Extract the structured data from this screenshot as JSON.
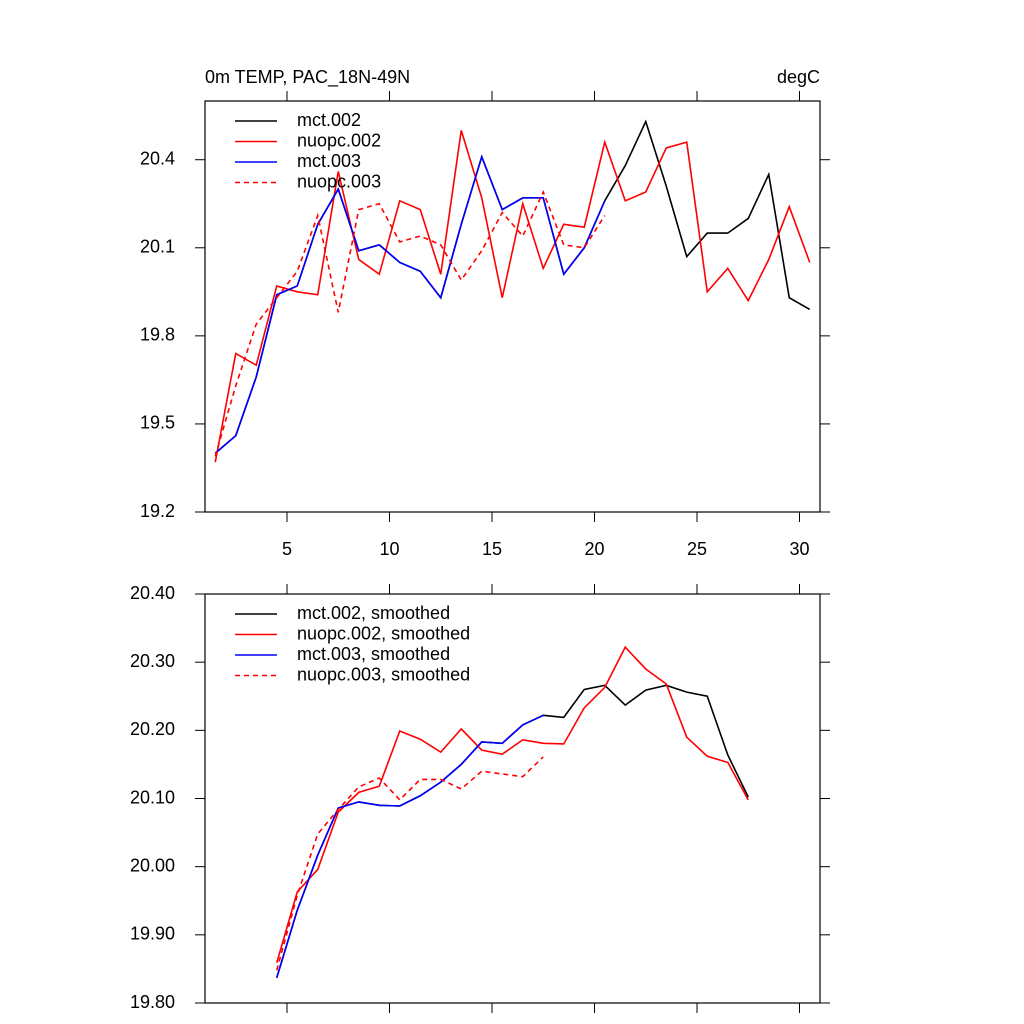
{
  "chart_data": [
    {
      "type": "line",
      "title": "0m TEMP, PAC_18N-49N",
      "subtitle": "degC",
      "x": [
        1.5,
        2.5,
        3.5,
        4.5,
        5.5,
        6.5,
        7.5,
        8.5,
        9.5,
        10.5,
        11.5,
        12.5,
        13.5,
        14.5,
        15.5,
        16.5,
        17.5,
        18.5,
        19.5,
        20.5,
        21.5,
        22.5,
        23.5,
        24.5,
        25.5,
        26.5,
        27.5,
        28.5,
        29.5,
        30.5
      ],
      "xlim": [
        1,
        31
      ],
      "xticks": [
        5,
        10,
        15,
        20,
        25,
        30
      ],
      "ylim": [
        19.2,
        20.6
      ],
      "yticks": [
        19.2,
        19.5,
        19.8,
        20.1,
        20.4
      ],
      "series": [
        {
          "name": "mct.002",
          "color": "#000000",
          "dashed": false,
          "values": [
            19.4,
            19.46,
            19.66,
            19.94,
            19.97,
            20.18,
            20.3,
            20.09,
            20.11,
            20.05,
            20.02,
            19.93,
            20.18,
            20.41,
            20.23,
            20.27,
            20.27,
            20.01,
            20.1,
            20.26,
            20.38,
            20.53,
            20.31,
            20.07,
            20.15,
            20.15,
            20.2,
            20.35,
            19.93,
            19.89
          ]
        },
        {
          "name": "nuopc.002",
          "color": "#ff0000",
          "dashed": false,
          "values": [
            19.37,
            19.74,
            19.7,
            19.97,
            19.95,
            19.94,
            20.36,
            20.06,
            20.01,
            20.26,
            20.23,
            20.01,
            20.5,
            20.27,
            19.93,
            20.25,
            20.03,
            20.18,
            20.17,
            20.46,
            20.26,
            20.29,
            20.44,
            20.46,
            19.95,
            20.03,
            19.92,
            20.06,
            20.24,
            20.05
          ]
        },
        {
          "name": "mct.003",
          "color": "#0000ff",
          "dashed": false,
          "values": [
            19.4,
            19.46,
            19.66,
            19.94,
            19.97,
            20.18,
            20.3,
            20.09,
            20.11,
            20.05,
            20.02,
            19.93,
            20.18,
            20.41,
            20.23,
            20.27,
            20.27,
            20.01,
            20.1,
            20.26,
            null,
            null,
            null,
            null,
            null,
            null,
            null,
            null,
            null,
            null
          ]
        },
        {
          "name": "nuopc.003",
          "color": "#ff0000",
          "dashed": true,
          "values": [
            19.39,
            19.63,
            19.84,
            19.93,
            20.02,
            20.21,
            19.88,
            20.23,
            20.25,
            20.12,
            20.14,
            20.11,
            19.99,
            20.09,
            20.22,
            20.14,
            20.29,
            20.11,
            20.1,
            20.21,
            null,
            null,
            null,
            null,
            null,
            null,
            null,
            null,
            null,
            null
          ]
        }
      ]
    },
    {
      "type": "line",
      "x": [
        4.5,
        5.5,
        6.5,
        7.5,
        8.5,
        9.5,
        10.5,
        11.5,
        12.5,
        13.5,
        14.5,
        15.5,
        16.5,
        17.5,
        18.5,
        19.5,
        20.5,
        21.5,
        22.5,
        23.5,
        24.5,
        25.5,
        26.5,
        27.5
      ],
      "xlim": [
        1,
        31
      ],
      "ylim": [
        19.8,
        20.4
      ],
      "yticks": [
        {
          "value": 19.8,
          "label": "19.80"
        },
        {
          "value": 19.9,
          "label": "19.90"
        },
        {
          "value": 20.0,
          "label": "20.00"
        },
        {
          "value": 20.1,
          "label": "20.10"
        },
        {
          "value": 20.2,
          "label": "20.20"
        },
        {
          "value": 20.3,
          "label": "20.30"
        },
        {
          "value": 20.4,
          "label": "20.40"
        }
      ],
      "series": [
        {
          "name": "mct.002, smoothed",
          "color": "#000000",
          "dashed": false,
          "values": [
            19.837,
            19.936,
            20.017,
            20.086,
            20.095,
            20.09,
            20.089,
            20.104,
            20.124,
            20.15,
            20.183,
            20.181,
            20.208,
            20.222,
            20.219,
            20.26,
            20.266,
            20.237,
            20.259,
            20.266,
            20.256,
            20.25,
            20.164,
            20.102
          ]
        },
        {
          "name": "nuopc.002, smoothed",
          "color": "#ff0000",
          "dashed": false,
          "values": [
            19.859,
            19.963,
            19.996,
            20.08,
            20.109,
            20.118,
            20.199,
            20.187,
            20.168,
            20.202,
            20.171,
            20.165,
            20.186,
            20.181,
            20.18,
            20.233,
            20.263,
            20.322,
            20.29,
            20.268,
            20.19,
            20.162,
            20.153,
            20.098
          ]
        },
        {
          "name": "mct.003, smoothed",
          "color": "#0000ff",
          "dashed": false,
          "values": [
            19.837,
            19.936,
            20.017,
            20.086,
            20.095,
            20.09,
            20.089,
            20.104,
            20.124,
            20.15,
            20.183,
            20.181,
            20.208,
            20.222,
            null,
            null,
            null,
            null,
            null,
            null,
            null,
            null,
            null,
            null
          ]
        },
        {
          "name": "nuopc.003, smoothed",
          "color": "#ff0000",
          "dashed": true,
          "values": [
            19.848,
            19.958,
            20.048,
            20.084,
            20.117,
            20.13,
            20.098,
            20.128,
            20.128,
            20.114,
            20.14,
            20.136,
            20.132,
            20.161,
            null,
            null,
            null,
            null,
            null,
            null,
            null,
            null,
            null,
            null
          ]
        }
      ]
    }
  ]
}
